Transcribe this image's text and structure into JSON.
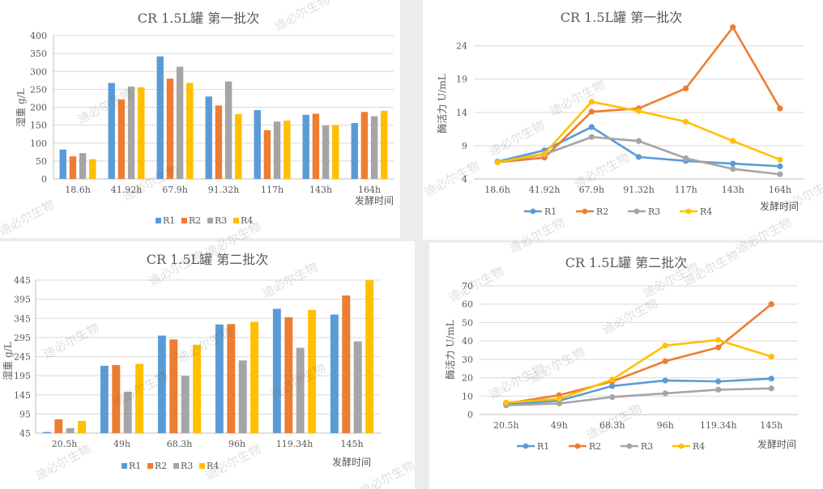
{
  "watermark": "迪必尔生物",
  "colors": {
    "R1": "#5b9bd5",
    "R2": "#ed7d31",
    "R3": "#a5a5a5",
    "R4": "#ffc000"
  },
  "chart_data": [
    {
      "type": "bar",
      "title": "CR 1.5L罐  第一批次",
      "ylabel": "湿重 g/L",
      "xlabel": "发酵时间",
      "categories": [
        "18.6h",
        "41.92h",
        "67.9h",
        "91.32h",
        "117h",
        "143h",
        "164h"
      ],
      "ylim": [
        0,
        400
      ],
      "yticks": [
        0,
        50,
        100,
        150,
        200,
        250,
        300,
        350,
        400
      ],
      "grid": true,
      "legend": "bottom",
      "series": [
        {
          "name": "R1",
          "values": [
            82,
            268,
            342,
            230,
            192,
            179,
            156
          ]
        },
        {
          "name": "R2",
          "values": [
            63,
            222,
            280,
            205,
            136,
            182,
            187
          ]
        },
        {
          "name": "R3",
          "values": [
            72,
            258,
            313,
            272,
            160,
            149,
            175
          ]
        },
        {
          "name": "R4",
          "values": [
            55,
            256,
            268,
            181,
            163,
            150,
            190
          ]
        }
      ]
    },
    {
      "type": "line",
      "title": "CR 1.5L罐  第一批次",
      "ylabel": "酶活力 U/mL",
      "xlabel": "发酵时间",
      "categories": [
        "18.6h",
        "41.92h",
        "67.9h",
        "91.32h",
        "117h",
        "143h",
        "164h"
      ],
      "ylim": [
        4,
        27
      ],
      "yticks": [
        4,
        9,
        14,
        19,
        24
      ],
      "grid": true,
      "legend": "bottom",
      "series": [
        {
          "name": "R1",
          "values": [
            6.6,
            8.3,
            11.8,
            7.3,
            6.7,
            6.3,
            5.9
          ]
        },
        {
          "name": "R2",
          "values": [
            6.5,
            7.2,
            14.1,
            14.6,
            17.6,
            26.8,
            14.6
          ]
        },
        {
          "name": "R3",
          "values": [
            6.5,
            7.7,
            10.3,
            9.7,
            7.1,
            5.5,
            4.7
          ]
        },
        {
          "name": "R4",
          "values": [
            6.5,
            7.8,
            15.6,
            14.2,
            12.6,
            9.7,
            6.9
          ]
        }
      ]
    },
    {
      "type": "bar",
      "title": "CR 1.5L罐  第二批次",
      "ylabel": "湿重 g/L",
      "xlabel": "发酵时间",
      "categories": [
        "20.5h",
        "49h",
        "68.3h",
        "96h",
        "119.34h",
        "145h"
      ],
      "ylim": [
        45,
        445
      ],
      "yticks": [
        45,
        95,
        145,
        195,
        245,
        295,
        345,
        395,
        445
      ],
      "grid": true,
      "legend": "bottom",
      "series": [
        {
          "name": "R1",
          "values": [
            48,
            221,
            300,
            329,
            370,
            355
          ]
        },
        {
          "name": "R2",
          "values": [
            81,
            223,
            290,
            330,
            348,
            405
          ]
        },
        {
          "name": "R3",
          "values": [
            58,
            153,
            195,
            235,
            268,
            285
          ]
        },
        {
          "name": "R4",
          "values": [
            77,
            226,
            276,
            336,
            367,
            445
          ]
        }
      ]
    },
    {
      "type": "line",
      "title": "CR 1.5L罐  第二批次",
      "ylabel": "酶活力 U/mL",
      "xlabel": "发酵时间",
      "categories": [
        "20.5h",
        "49h",
        "68.3h",
        "96h",
        "119.34h",
        "145h"
      ],
      "ylim": [
        0,
        70
      ],
      "yticks": [
        0,
        10,
        20,
        30,
        40,
        50,
        60,
        70
      ],
      "grid": true,
      "legend": "bottom",
      "series": [
        {
          "name": "R1",
          "values": [
            5.5,
            7.5,
            15.5,
            18.5,
            18,
            19.5
          ]
        },
        {
          "name": "R2",
          "values": [
            6,
            10.5,
            18,
            29,
            36.5,
            60
          ]
        },
        {
          "name": "R3",
          "values": [
            5,
            6,
            9.5,
            11.5,
            13.5,
            14.2
          ]
        },
        {
          "name": "R4",
          "values": [
            6.5,
            8.5,
            19,
            37.5,
            40.5,
            31.5
          ]
        }
      ]
    }
  ]
}
